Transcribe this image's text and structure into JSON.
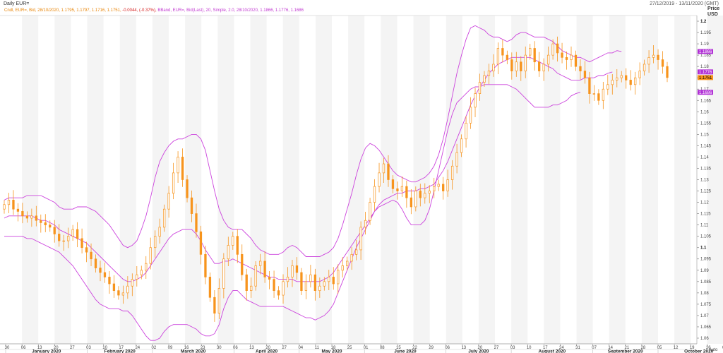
{
  "header": {
    "title": "Daily EUR=",
    "date_range": "27/12/2019 - 13/11/2020 (GMT)"
  },
  "legend": {
    "ohlc": "Cndl, EUR=, Bid, 28/10/2020, 1.1795, 1.1797, 1.1716, 1.1751,",
    "change": "-0.0044, (-0.37%),",
    "bband": "BBand, EUR=, Bid(Last), 20, Simple, 2.0, 28/10/2020, 1.1866, 1.1776, 1.1686"
  },
  "colors": {
    "candle": "#f7941d",
    "band": "#cc44dd",
    "change": "#d62020",
    "stripe": "#f4f4f4",
    "badge_last": "#f7941d",
    "badge_band": "#b130d6"
  },
  "chart_data": {
    "type": "candlestick",
    "title": "Daily EUR=",
    "ylabel": "Price USD",
    "ylim": [
      1.0575,
      1.2025
    ],
    "y_ticks": [
      "1.2",
      "1.195",
      "1.19",
      "1.185",
      "1.18",
      "1.175",
      "1.17",
      "1.165",
      "1.16",
      "1.155",
      "1.15",
      "1.145",
      "1.14",
      "1.135",
      "1.13",
      "1.125",
      "1.12",
      "1.115",
      "1.11",
      "1.105",
      "1.1",
      "1.095",
      "1.09",
      "1.085",
      "1.08",
      "1.075",
      "1.07",
      "1.065",
      "1.06"
    ],
    "x_ticks": [
      "30",
      "06",
      "13",
      "20",
      "27",
      "03",
      "10",
      "17",
      "24",
      "02",
      "09",
      "16",
      "23",
      "30",
      "06",
      "13",
      "20",
      "27",
      "04",
      "11",
      "18",
      "25",
      "01",
      "08",
      "15",
      "22",
      "29",
      "06",
      "13",
      "20",
      "27",
      "03",
      "10",
      "17",
      "24",
      "31",
      "07",
      "14",
      "21",
      "28",
      "05",
      "12",
      "19",
      "26",
      "02",
      "09",
      "Nov 20"
    ],
    "months": [
      "January 2020",
      "February 2020",
      "March 2020",
      "April 2020",
      "May 2020",
      "June 2020",
      "July 2020",
      "August 2020",
      "September 2020",
      "October 2020"
    ],
    "axis_extra": "Auto",
    "last_values": {
      "upper": "1.1866",
      "middle": "1.1776",
      "last": "1.1751",
      "lower": "1.1686"
    },
    "close_series": [
      1.119,
      1.121,
      1.117,
      1.116,
      1.114,
      1.113,
      1.114,
      1.112,
      1.111,
      1.11,
      1.109,
      1.106,
      1.103,
      1.103,
      1.105,
      1.108,
      1.104,
      1.1,
      1.098,
      1.095,
      1.091,
      1.089,
      1.087,
      1.084,
      1.081,
      1.079,
      1.08,
      1.083,
      1.086,
      1.088,
      1.09,
      1.093,
      1.1,
      1.105,
      1.109,
      1.117,
      1.124,
      1.133,
      1.14,
      1.13,
      1.122,
      1.115,
      1.107,
      1.097,
      1.087,
      1.078,
      1.071,
      1.082,
      1.095,
      1.101,
      1.105,
      1.097,
      1.088,
      1.081,
      1.083,
      1.092,
      1.094,
      1.087,
      1.086,
      1.081,
      1.079,
      1.085,
      1.087,
      1.092,
      1.089,
      1.081,
      1.085,
      1.088,
      1.081,
      1.083,
      1.085,
      1.087,
      1.084,
      1.09,
      1.092,
      1.094,
      1.097,
      1.099,
      1.109,
      1.112,
      1.12,
      1.127,
      1.133,
      1.137,
      1.13,
      1.126,
      1.125,
      1.127,
      1.122,
      1.118,
      1.125,
      1.122,
      1.124,
      1.125,
      1.127,
      1.128,
      1.125,
      1.13,
      1.136,
      1.142,
      1.148,
      1.155,
      1.162,
      1.168,
      1.173,
      1.176,
      1.178,
      1.181,
      1.188,
      1.185,
      1.183,
      1.178,
      1.182,
      1.178,
      1.185,
      1.188,
      1.182,
      1.178,
      1.181,
      1.185,
      1.19,
      1.186,
      1.184,
      1.183,
      1.185,
      1.18,
      1.178,
      1.175,
      1.168,
      1.168,
      1.165,
      1.17,
      1.172,
      1.174,
      1.175,
      1.176,
      1.174,
      1.172,
      1.175,
      1.178,
      1.181,
      1.184,
      1.185,
      1.183,
      1.18,
      1.1751
    ],
    "band_upper": [
      1.121,
      1.122,
      1.122,
      1.122,
      1.122,
      1.123,
      1.123,
      1.123,
      1.123,
      1.122,
      1.121,
      1.12,
      1.118,
      1.117,
      1.117,
      1.117,
      1.118,
      1.118,
      1.118,
      1.117,
      1.116,
      1.114,
      1.112,
      1.11,
      1.107,
      1.104,
      1.101,
      1.1,
      1.101,
      1.103,
      1.108,
      1.114,
      1.122,
      1.131,
      1.138,
      1.142,
      1.145,
      1.147,
      1.148,
      1.148,
      1.149,
      1.15,
      1.15,
      1.148,
      1.143,
      1.134,
      1.125,
      1.117,
      1.112,
      1.109,
      1.108,
      1.108,
      1.108,
      1.106,
      1.104,
      1.101,
      1.099,
      1.098,
      1.097,
      1.097,
      1.097,
      1.098,
      1.1,
      1.101,
      1.1,
      1.098,
      1.096,
      1.096,
      1.096,
      1.096,
      1.097,
      1.098,
      1.1,
      1.104,
      1.11,
      1.117,
      1.124,
      1.132,
      1.139,
      1.144,
      1.146,
      1.145,
      1.143,
      1.14,
      1.137,
      1.134,
      1.132,
      1.131,
      1.13,
      1.129,
      1.129,
      1.13,
      1.131,
      1.133,
      1.136,
      1.141,
      1.148,
      1.157,
      1.167,
      1.177,
      1.185,
      1.192,
      1.197,
      1.198,
      1.197,
      1.196,
      1.194,
      1.193,
      1.193,
      1.192,
      1.191,
      1.192,
      1.194,
      1.195,
      1.195,
      1.194,
      1.193,
      1.193,
      1.193,
      1.192,
      1.191,
      1.189,
      1.187,
      1.186,
      1.185,
      1.184,
      1.184,
      1.183,
      1.182,
      1.183,
      1.184,
      1.185,
      1.186,
      1.186,
      1.187,
      1.1866
    ],
    "band_middle": [
      1.113,
      1.114,
      1.114,
      1.114,
      1.114,
      1.114,
      1.114,
      1.113,
      1.112,
      1.112,
      1.111,
      1.11,
      1.108,
      1.107,
      1.106,
      1.105,
      1.104,
      1.103,
      1.102,
      1.1,
      1.098,
      1.096,
      1.094,
      1.092,
      1.09,
      1.088,
      1.086,
      1.085,
      1.085,
      1.086,
      1.087,
      1.089,
      1.092,
      1.095,
      1.098,
      1.101,
      1.104,
      1.106,
      1.107,
      1.108,
      1.108,
      1.108,
      1.106,
      1.103,
      1.099,
      1.096,
      1.093,
      1.093,
      1.094,
      1.094,
      1.095,
      1.094,
      1.093,
      1.092,
      1.091,
      1.09,
      1.089,
      1.088,
      1.087,
      1.087,
      1.086,
      1.086,
      1.086,
      1.086,
      1.085,
      1.085,
      1.085,
      1.085,
      1.085,
      1.085,
      1.086,
      1.087,
      1.089,
      1.092,
      1.095,
      1.098,
      1.101,
      1.104,
      1.107,
      1.11,
      1.113,
      1.116,
      1.119,
      1.121,
      1.122,
      1.123,
      1.124,
      1.124,
      1.125,
      1.125,
      1.125,
      1.126,
      1.126,
      1.127,
      1.128,
      1.131,
      1.134,
      1.138,
      1.143,
      1.148,
      1.153,
      1.158,
      1.163,
      1.167,
      1.171,
      1.174,
      1.177,
      1.179,
      1.181,
      1.182,
      1.183,
      1.184,
      1.184,
      1.184,
      1.184,
      1.184,
      1.183,
      1.182,
      1.181,
      1.18,
      1.179,
      1.177,
      1.176,
      1.175,
      1.174,
      1.174,
      1.174,
      1.175,
      1.175,
      1.175,
      1.176,
      1.176,
      1.177,
      1.1776
    ],
    "band_lower": [
      1.105,
      1.105,
      1.105,
      1.105,
      1.105,
      1.104,
      1.104,
      1.103,
      1.102,
      1.101,
      1.1,
      1.099,
      1.098,
      1.096,
      1.094,
      1.092,
      1.089,
      1.086,
      1.083,
      1.08,
      1.077,
      1.075,
      1.074,
      1.073,
      1.073,
      1.073,
      1.072,
      1.072,
      1.07,
      1.067,
      1.064,
      1.061,
      1.059,
      1.059,
      1.06,
      1.063,
      1.065,
      1.066,
      1.066,
      1.066,
      1.066,
      1.065,
      1.064,
      1.062,
      1.061,
      1.061,
      1.062,
      1.066,
      1.073,
      1.078,
      1.081,
      1.081,
      1.079,
      1.077,
      1.076,
      1.075,
      1.074,
      1.074,
      1.074,
      1.074,
      1.074,
      1.074,
      1.073,
      1.072,
      1.071,
      1.07,
      1.069,
      1.069,
      1.068,
      1.069,
      1.07,
      1.072,
      1.075,
      1.08,
      1.085,
      1.09,
      1.095,
      1.1,
      1.104,
      1.108,
      1.112,
      1.116,
      1.118,
      1.119,
      1.12,
      1.121,
      1.12,
      1.117,
      1.113,
      1.11,
      1.11,
      1.11,
      1.112,
      1.117,
      1.125,
      1.134,
      1.143,
      1.152,
      1.159,
      1.164,
      1.166,
      1.168,
      1.17,
      1.171,
      1.171,
      1.172,
      1.172,
      1.172,
      1.172,
      1.172,
      1.172,
      1.171,
      1.17,
      1.168,
      1.166,
      1.164,
      1.162,
      1.162,
      1.162,
      1.162,
      1.163,
      1.163,
      1.164,
      1.165,
      1.167,
      1.168,
      1.1686
    ]
  }
}
